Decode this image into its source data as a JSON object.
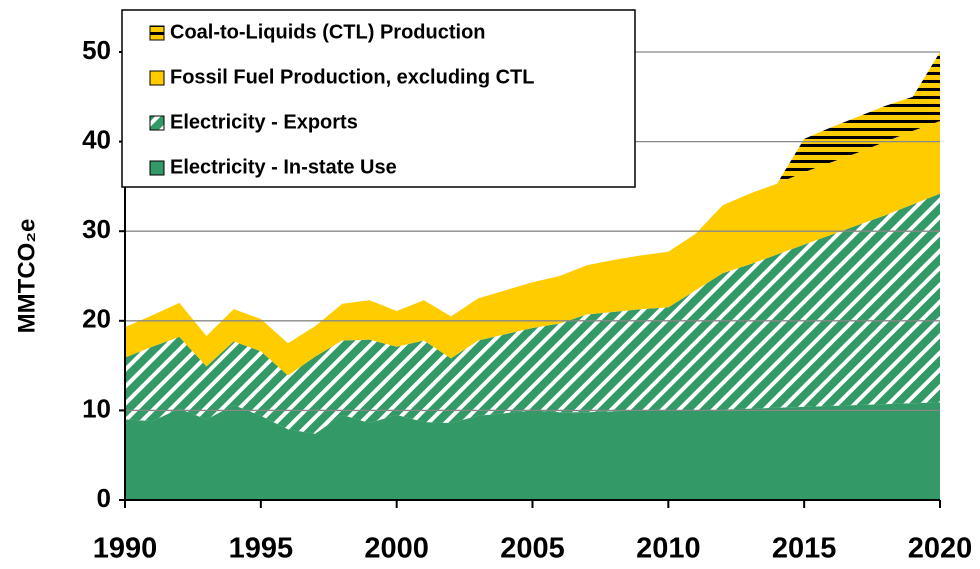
{
  "chart_data": {
    "type": "stacked-area",
    "y_label": "MMTCO₂e",
    "x": [
      1990,
      1991,
      1992,
      1993,
      1994,
      1995,
      1996,
      1997,
      1998,
      1999,
      2000,
      2001,
      2002,
      2003,
      2004,
      2005,
      2006,
      2007,
      2008,
      2009,
      2010,
      2011,
      2012,
      2013,
      2014,
      2015,
      2016,
      2017,
      2018,
      2019,
      2020
    ],
    "xlim": [
      1990,
      2020
    ],
    "xticks": [
      1990,
      1995,
      2000,
      2005,
      2010,
      2015,
      2020
    ],
    "ylim": [
      0,
      50
    ],
    "yticks": [
      0,
      10,
      20,
      30,
      40,
      50
    ],
    "grid": true,
    "series": [
      {
        "name": "Electricity - In-state Use",
        "color": "#339966",
        "hatch": "none",
        "values": [
          9.0,
          8.8,
          10.2,
          9.0,
          10.6,
          9.4,
          7.9,
          7.4,
          9.5,
          8.6,
          9.5,
          8.7,
          8.6,
          9.4,
          9.7,
          10.0,
          9.8,
          9.8,
          9.9,
          10.0,
          10.0,
          10.0,
          10.1,
          10.2,
          10.3,
          10.4,
          10.5,
          10.6,
          10.7,
          10.8,
          10.9
        ]
      },
      {
        "name": "Electricity - Exports",
        "color": "#339966",
        "hatch": "diagonal",
        "values": [
          6.9,
          8.3,
          8.0,
          5.9,
          7.1,
          7.2,
          6.0,
          8.6,
          8.3,
          9.3,
          7.6,
          9.1,
          7.2,
          8.4,
          8.8,
          9.2,
          9.9,
          10.9,
          11.1,
          11.3,
          11.5,
          13.4,
          15.2,
          16.1,
          17.1,
          18.1,
          19.1,
          20.1,
          21.1,
          22.2,
          23.3
        ]
      },
      {
        "name": "Fossil Fuel Production, excluding CTL",
        "color": "#ffcc00",
        "hatch": "none",
        "values": [
          3.4,
          3.5,
          3.8,
          3.4,
          3.6,
          3.6,
          3.6,
          3.4,
          4.1,
          4.4,
          4.0,
          4.5,
          4.7,
          4.7,
          4.9,
          5.1,
          5.3,
          5.5,
          5.8,
          6.0,
          6.2,
          6.3,
          7.6,
          7.9,
          7.9,
          8.1,
          8.1,
          8.1,
          8.2,
          8.2,
          8.1
        ]
      },
      {
        "name": "Coal-to-Liquids (CTL) Production",
        "color": "#ffcc00",
        "hatch": "horizontal",
        "values": [
          0,
          0,
          0,
          0,
          0,
          0,
          0,
          0,
          0,
          0,
          0,
          0,
          0,
          0,
          0,
          0,
          0,
          0,
          0,
          0,
          0,
          0,
          0,
          0,
          0,
          3.7,
          3.9,
          4.0,
          4.0,
          3.8,
          7.7
        ]
      }
    ]
  }
}
